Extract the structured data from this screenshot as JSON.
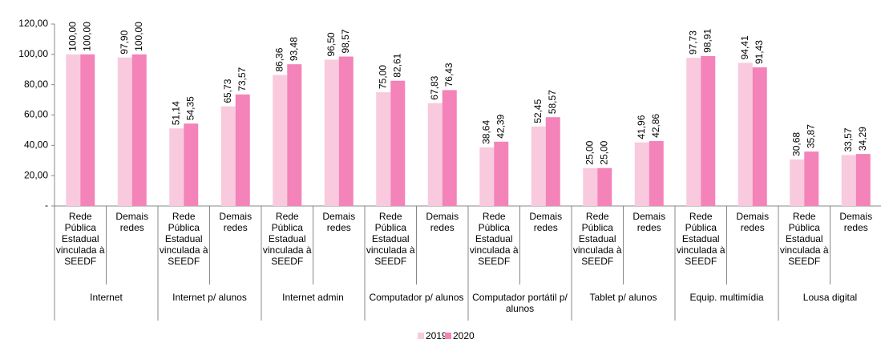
{
  "chart_data": {
    "type": "bar",
    "groups": [
      "Internet",
      "Internet p/ alunos",
      "Internet admin",
      "Computador p/ alunos",
      "Computador portátil p/ alunos",
      "Tablet p/ alunos",
      "Equip. multimídia",
      "Lousa digital"
    ],
    "categories": [
      "Rede Pública Estadual vinculada à SEEDF",
      "Demais redes",
      "Rede Pública Estadual vinculada à SEEDF",
      "Demais redes",
      "Rede Pública Estadual vinculada à SEEDF",
      "Demais redes",
      "Rede Pública Estadual vinculada à SEEDF",
      "Demais redes",
      "Rede Pública Estadual vinculada à SEEDF",
      "Demais redes",
      "Rede Pública Estadual vinculada à SEEDF",
      "Demais redes",
      "Rede Pública Estadual vinculada à SEEDF",
      "Demais redes",
      "Rede Pública Estadual vinculada à SEEDF",
      "Demais redes"
    ],
    "series": [
      {
        "name": "2019",
        "color": "#f9cade",
        "values": [
          100,
          97.9,
          51.14,
          65.73,
          86.36,
          96.5,
          75,
          67.83,
          38.64,
          52.45,
          25,
          41.96,
          97.73,
          94.41,
          30.68,
          33.57
        ],
        "value_labels": [
          "100,00",
          "97,90",
          "51,14",
          "65,73",
          "86,36",
          "96,50",
          "75,00",
          "67,83",
          "38,64",
          "52,45",
          "25,00",
          "41,96",
          "97,73",
          "94,41",
          "30,68",
          "33,57"
        ]
      },
      {
        "name": "2020",
        "color": "#f383b9",
        "values": [
          100,
          100,
          54.35,
          73.57,
          93.48,
          98.57,
          82.61,
          76.43,
          42.39,
          58.57,
          25,
          42.86,
          98.91,
          91.43,
          35.87,
          34.29
        ],
        "value_labels": [
          "100,00",
          "100,00",
          "54,35",
          "73,57",
          "93,48",
          "98,57",
          "82,61",
          "76,43",
          "42,39",
          "58,57",
          "25,00",
          "42,86",
          "98,91",
          "91,43",
          "35,87",
          "34,29"
        ]
      }
    ],
    "ylim": [
      0,
      120
    ],
    "yticks": [
      {
        "value": 0,
        "label": "-"
      },
      {
        "value": 20,
        "label": "20,00"
      },
      {
        "value": 40,
        "label": "40,00"
      },
      {
        "value": 60,
        "label": "60,00"
      },
      {
        "value": 80,
        "label": "80,00"
      },
      {
        "value": 100,
        "label": "100,00"
      },
      {
        "value": 120,
        "label": "120,00"
      }
    ],
    "legend": "bottom"
  }
}
